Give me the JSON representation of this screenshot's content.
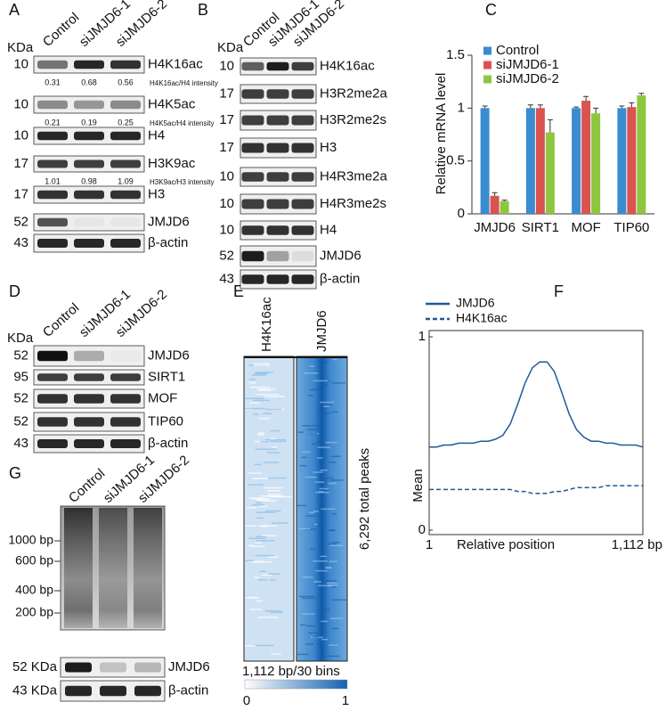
{
  "panels": {
    "A": {
      "label": "A",
      "kda_header": "KDa",
      "lanes": [
        "Control",
        "siJMJD6-1",
        "siJMJD6-2"
      ],
      "rows": [
        {
          "kda": 10,
          "name": "H4K16ac",
          "quant": {
            "values": [
              0.31,
              0.68,
              0.56
            ],
            "label": "H4K16ac/H4 intensity"
          }
        },
        {
          "kda": 10,
          "name": "H4K5ac",
          "quant": {
            "values": [
              0.21,
              0.19,
              0.25
            ],
            "label": "H4K5ac/H4 intensity"
          }
        },
        {
          "kda": 10,
          "name": "H4"
        },
        {
          "kda": 17,
          "name": "H3K9ac",
          "quant": {
            "values": [
              1.01,
              0.98,
              1.09
            ],
            "label": "H3K9ac/H3 intensity"
          }
        },
        {
          "kda": 17,
          "name": "H3"
        },
        {
          "kda": 52,
          "name": "JMJD6"
        },
        {
          "kda": 43,
          "name": "β-actin"
        }
      ]
    },
    "B": {
      "label": "B",
      "kda_header": "KDa",
      "lanes": [
        "Control",
        "siJMJD6-1",
        "siJMJD6-2"
      ],
      "rows": [
        {
          "kda": 10,
          "name": "H4K16ac"
        },
        {
          "kda": 17,
          "name": "H3R2me2a"
        },
        {
          "kda": 17,
          "name": "H3R2me2s"
        },
        {
          "kda": 17,
          "name": "H3"
        },
        {
          "kda": 10,
          "name": "H4R3me2a"
        },
        {
          "kda": 10,
          "name": "H4R3me2s"
        },
        {
          "kda": 10,
          "name": "H4"
        },
        {
          "kda": 52,
          "name": "JMJD6"
        },
        {
          "kda": 43,
          "name": "β-actin"
        }
      ]
    },
    "D": {
      "label": "D",
      "kda_header": "KDa",
      "lanes": [
        "Control",
        "siJMJD6-1",
        "siJMJD6-2"
      ],
      "rows": [
        {
          "kda": 52,
          "name": "JMJD6"
        },
        {
          "kda": 95,
          "name": "SIRT1"
        },
        {
          "kda": 52,
          "name": "MOF"
        },
        {
          "kda": 52,
          "name": "TIP60"
        },
        {
          "kda": 43,
          "name": "β-actin"
        }
      ]
    },
    "E": {
      "label": "E",
      "columns": [
        "H4K16ac",
        "JMJD6"
      ],
      "peaks_label": "6,292 total peaks",
      "bins_label": "1,112 bp/30 bins",
      "colorbar": {
        "min": 0,
        "max": 1
      }
    },
    "G": {
      "label": "G",
      "lanes": [
        "Control",
        "siJMJD6-1",
        "siJMJD6-2"
      ],
      "markers": [
        "1000 bp",
        "600 bp",
        "400 bp",
        "200 bp"
      ],
      "rows": [
        {
          "kda": "52 KDa",
          "name": "JMJD6"
        },
        {
          "kda": "43 KDa",
          "name": "β-actin"
        }
      ]
    }
  },
  "chart_data": [
    {
      "type": "bar",
      "label": "C",
      "ylabel": "Relative mRNA level",
      "categories": [
        "JMJD6",
        "SIRT1",
        "MOF",
        "TIP60"
      ],
      "series": [
        {
          "name": "Control",
          "color": "#3b8bd0",
          "values": [
            1,
            1,
            1,
            1
          ],
          "errors": [
            0.02,
            0.03,
            0.01,
            0.02
          ]
        },
        {
          "name": "siJMJD6-1",
          "color": "#d9534f",
          "values": [
            0.17,
            1,
            1.07,
            1.01
          ],
          "errors": [
            0.03,
            0.03,
            0.04,
            0.04
          ]
        },
        {
          "name": "siJMJD6-2",
          "color": "#8dc63f",
          "values": [
            0.12,
            0.77,
            0.95,
            1.12
          ],
          "errors": [
            0.01,
            0.12,
            0.05,
            0.02
          ]
        }
      ],
      "ylim": [
        0,
        1.5
      ],
      "yticks": [
        0,
        0.5,
        1,
        1.5
      ]
    },
    {
      "type": "line",
      "label": "F",
      "xlabel": "Relative position",
      "ylabel": "Mean",
      "x": [
        1,
        39,
        78,
        116,
        154,
        193,
        231,
        269,
        308,
        346,
        384,
        423,
        461,
        499,
        538,
        576,
        614,
        652,
        691,
        729,
        767,
        806,
        844,
        882,
        921,
        959,
        997,
        1036,
        1074,
        1112
      ],
      "series": [
        {
          "name": "JMJD6",
          "color": "#1f5a99",
          "style": "solid",
          "values": [
            0.43,
            0.43,
            0.44,
            0.44,
            0.45,
            0.45,
            0.45,
            0.46,
            0.46,
            0.47,
            0.49,
            0.55,
            0.65,
            0.76,
            0.84,
            0.87,
            0.87,
            0.82,
            0.71,
            0.6,
            0.52,
            0.48,
            0.46,
            0.46,
            0.45,
            0.45,
            0.44,
            0.44,
            0.44,
            0.43
          ]
        },
        {
          "name": "H4K16ac",
          "color": "#1f5a99",
          "style": "dashed",
          "values": [
            0.21,
            0.21,
            0.21,
            0.21,
            0.21,
            0.21,
            0.21,
            0.21,
            0.21,
            0.21,
            0.21,
            0.21,
            0.2,
            0.2,
            0.19,
            0.19,
            0.19,
            0.2,
            0.2,
            0.21,
            0.22,
            0.22,
            0.22,
            0.22,
            0.23,
            0.23,
            0.23,
            0.23,
            0.23,
            0.23
          ]
        }
      ],
      "xlim": [
        1,
        1112
      ],
      "xticks": [
        1,
        {
          "value": 1112,
          "label": "1,112 bp"
        }
      ],
      "ylim": [
        0,
        1
      ],
      "yticks": [
        0,
        1
      ]
    }
  ]
}
